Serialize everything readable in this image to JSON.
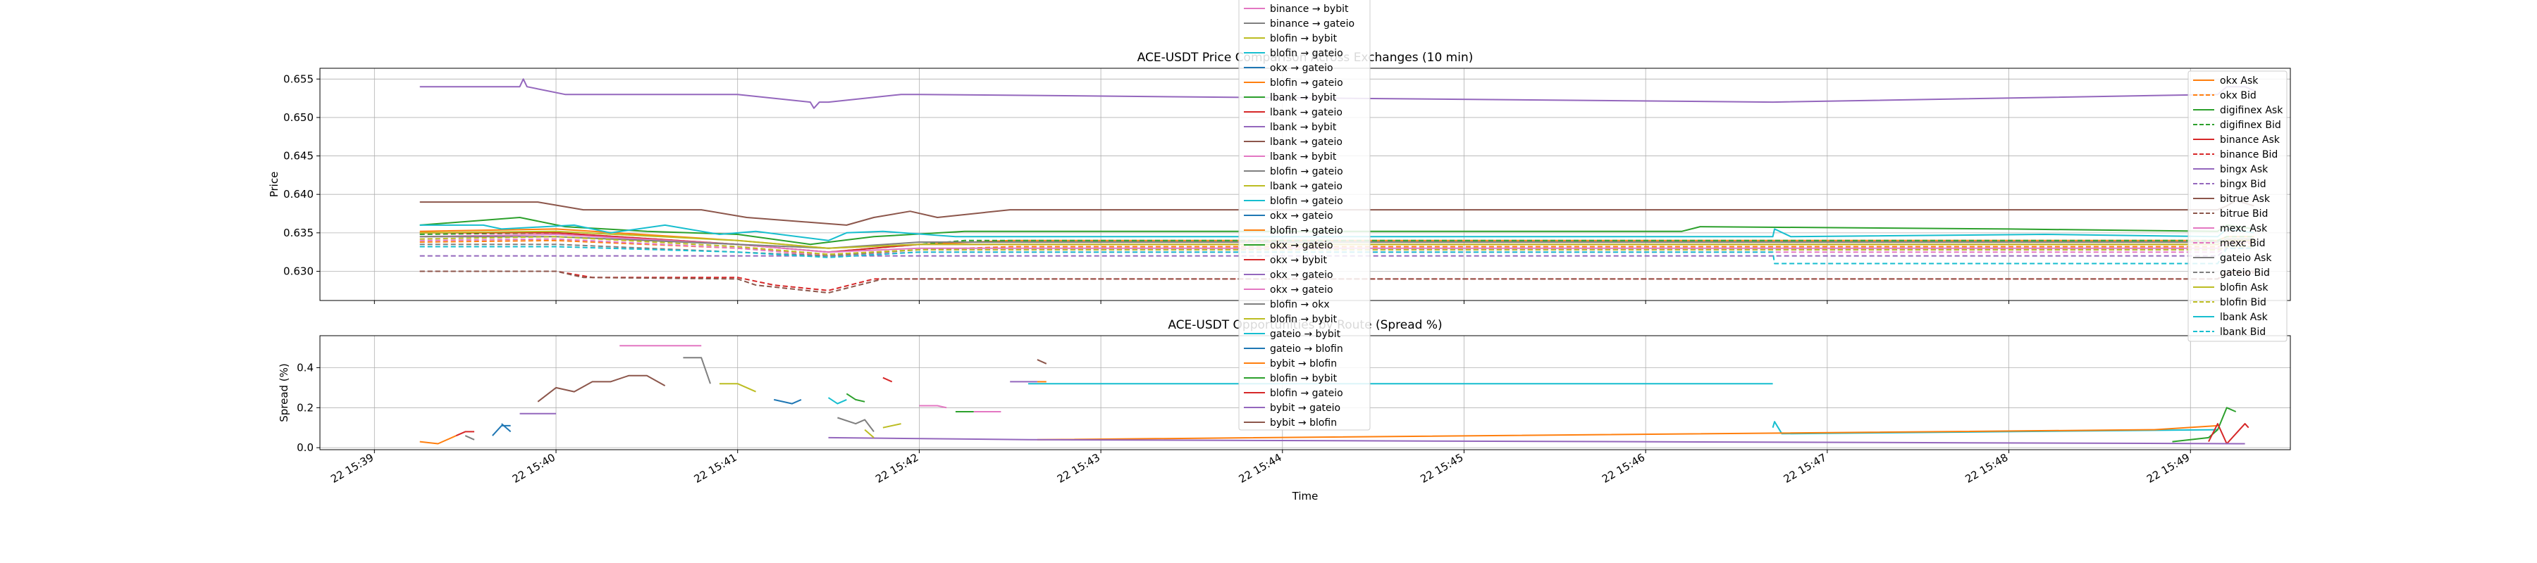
{
  "time_ticks": [
    "22 15:39",
    "22 15:40",
    "22 15:41",
    "22 15:42",
    "22 15:43",
    "22 15:44",
    "22 15:45",
    "22 15:46",
    "22 15:47",
    "22 15:48",
    "22 15:49"
  ],
  "colors": {
    "okx": "#ff7f0e",
    "digifinex": "#2ca02c",
    "binance": "#d62728",
    "bingx": "#9467bd",
    "bitrue": "#8c564b",
    "mexc": "#e377c2",
    "gateio": "#7f7f7f",
    "blofin": "#bcbd22",
    "lbank": "#17becf",
    "blue": "#1f77b4"
  },
  "chart_data": [
    {
      "type": "line",
      "title": "ACE-USDT Price Comparison Across Exchanges (10 min)",
      "xlabel": "",
      "ylabel": "Price",
      "xlim": [
        "15:38.7",
        "15:49.55"
      ],
      "ylim": [
        0.6262,
        0.6564
      ],
      "yticks": [
        "0.630",
        "0.635",
        "0.640",
        "0.645",
        "0.650",
        "0.655"
      ],
      "grid": true,
      "legend_position": "right",
      "series": [
        {
          "name": "okx Ask",
          "color": "#ff7f0e",
          "dash": false,
          "x": [
            39.25,
            40.0,
            41.0,
            41.5,
            42.0,
            42.5,
            49.15,
            49.2,
            49.35
          ],
          "y": [
            0.6352,
            0.6355,
            0.634,
            0.633,
            0.6335,
            0.634,
            0.634,
            0.6345,
            0.6345
          ]
        },
        {
          "name": "okx Bid",
          "color": "#ff7f0e",
          "dash": true,
          "x": [
            39.25,
            40.0,
            41.0,
            41.5,
            42.0,
            42.5,
            49.15,
            49.2,
            49.35
          ],
          "y": [
            0.6338,
            0.634,
            0.633,
            0.6322,
            0.6328,
            0.6332,
            0.6332,
            0.6336,
            0.6336
          ]
        },
        {
          "name": "digifinex Ask",
          "color": "#2ca02c",
          "dash": false,
          "x": [
            39.25,
            39.8,
            40.05,
            40.5,
            41.0,
            41.4,
            41.75,
            42.25,
            46.2,
            46.3,
            48.0,
            49.15,
            49.2,
            49.35
          ],
          "y": [
            0.636,
            0.637,
            0.6358,
            0.6352,
            0.6348,
            0.6335,
            0.6345,
            0.6352,
            0.6352,
            0.6358,
            0.6355,
            0.6352,
            0.636,
            0.6355
          ]
        },
        {
          "name": "digifinex Bid",
          "color": "#2ca02c",
          "dash": true,
          "x": [
            39.25,
            40.0,
            41.0,
            41.5,
            42.25,
            49.15,
            49.2,
            49.35
          ],
          "y": [
            0.6348,
            0.635,
            0.6335,
            0.6325,
            0.634,
            0.634,
            0.6345,
            0.6345
          ]
        },
        {
          "name": "binance Ask",
          "color": "#d62728",
          "dash": false,
          "x": [
            39.25,
            40.0,
            41.0,
            41.5,
            42.0,
            49.15,
            49.2,
            49.35
          ],
          "y": [
            0.635,
            0.635,
            0.6335,
            0.6325,
            0.6335,
            0.6335,
            0.634,
            0.634
          ]
        },
        {
          "name": "binance Bid",
          "color": "#d62728",
          "dash": true,
          "x": [
            39.25,
            40.0,
            40.2,
            41.0,
            41.2,
            41.5,
            41.75,
            49.15,
            49.2,
            49.35
          ],
          "y": [
            0.63,
            0.63,
            0.6292,
            0.6292,
            0.6282,
            0.6275,
            0.629,
            0.629,
            0.6298,
            0.6298
          ]
        },
        {
          "name": "bingx Ask",
          "color": "#9467bd",
          "dash": false,
          "x": [
            39.25,
            39.8,
            39.82,
            39.84,
            40.05,
            41.0,
            41.4,
            41.42,
            41.45,
            41.5,
            41.9,
            42.0,
            46.7,
            49.15,
            49.2,
            49.3,
            49.35
          ],
          "y": [
            0.654,
            0.654,
            0.655,
            0.654,
            0.653,
            0.653,
            0.652,
            0.6512,
            0.652,
            0.652,
            0.653,
            0.653,
            0.652,
            0.653,
            0.654,
            0.654,
            0.6535
          ]
        },
        {
          "name": "bingx Bid",
          "color": "#9467bd",
          "dash": true,
          "x": [
            39.25,
            40.0,
            41.0,
            41.5,
            42.0,
            49.15,
            49.2,
            49.35
          ],
          "y": [
            0.632,
            0.632,
            0.632,
            0.632,
            0.632,
            0.632,
            0.633,
            0.633
          ]
        },
        {
          "name": "bitrue Ask",
          "color": "#8c564b",
          "dash": false,
          "x": [
            39.25,
            39.9,
            40.15,
            40.8,
            41.05,
            41.6,
            41.75,
            41.95,
            42.1,
            42.5,
            49.15,
            49.2,
            49.25,
            49.35
          ],
          "y": [
            0.639,
            0.639,
            0.638,
            0.638,
            0.637,
            0.636,
            0.637,
            0.6378,
            0.637,
            0.638,
            0.638,
            0.6385,
            0.6392,
            0.6385
          ]
        },
        {
          "name": "bitrue Bid",
          "color": "#8c564b",
          "dash": true,
          "x": [
            39.25,
            40.0,
            40.15,
            41.0,
            41.1,
            41.5,
            41.8,
            49.15,
            49.2,
            49.35
          ],
          "y": [
            0.63,
            0.63,
            0.6292,
            0.629,
            0.6282,
            0.6272,
            0.629,
            0.629,
            0.63,
            0.63
          ]
        },
        {
          "name": "mexc Ask",
          "color": "#e377c2",
          "dash": false,
          "x": [
            39.25,
            40.0,
            41.0,
            41.5,
            42.0,
            49.15,
            49.2,
            49.35
          ],
          "y": [
            0.6345,
            0.6348,
            0.6335,
            0.6325,
            0.633,
            0.633,
            0.6338,
            0.6338
          ]
        },
        {
          "name": "mexc Bid",
          "color": "#e377c2",
          "dash": true,
          "x": [
            39.25,
            40.0,
            41.0,
            41.5,
            42.0,
            49.15,
            49.2,
            49.35
          ],
          "y": [
            0.634,
            0.6342,
            0.633,
            0.632,
            0.6325,
            0.6325,
            0.6332,
            0.6332
          ]
        },
        {
          "name": "gateio Ask",
          "color": "#7f7f7f",
          "dash": false,
          "x": [
            39.25,
            40.0,
            41.0,
            41.5,
            42.0,
            49.15,
            49.2,
            49.35
          ],
          "y": [
            0.6345,
            0.6345,
            0.6335,
            0.633,
            0.6338,
            0.6338,
            0.6342,
            0.6342
          ]
        },
        {
          "name": "gateio Bid",
          "color": "#7f7f7f",
          "dash": true,
          "x": [
            39.25,
            40.0,
            41.0,
            41.5,
            42.0,
            49.15,
            49.2,
            49.35
          ],
          "y": [
            0.6335,
            0.6335,
            0.6325,
            0.632,
            0.6328,
            0.6328,
            0.6332,
            0.6332
          ]
        },
        {
          "name": "blofin Ask",
          "color": "#bcbd22",
          "dash": false,
          "x": [
            39.25,
            40.0,
            41.0,
            41.5,
            42.0,
            49.15,
            49.2,
            49.35
          ],
          "y": [
            0.635,
            0.6352,
            0.634,
            0.633,
            0.6335,
            0.6335,
            0.634,
            0.634
          ]
        },
        {
          "name": "blofin Bid",
          "color": "#bcbd22",
          "dash": true,
          "x": [
            39.25,
            40.0,
            41.0,
            41.5,
            42.0,
            49.15,
            49.2,
            49.35
          ],
          "y": [
            0.6342,
            0.6345,
            0.6332,
            0.6322,
            0.6328,
            0.6328,
            0.6332,
            0.6332
          ]
        },
        {
          "name": "lbank Ask",
          "color": "#17becf",
          "dash": false,
          "x": [
            39.25,
            39.6,
            39.7,
            40.1,
            40.3,
            40.6,
            40.9,
            41.1,
            41.5,
            41.6,
            41.8,
            42.2,
            46.7,
            46.71,
            46.8,
            48.2,
            49.15,
            49.2,
            49.35
          ],
          "y": [
            0.636,
            0.636,
            0.6355,
            0.636,
            0.635,
            0.636,
            0.6348,
            0.6352,
            0.634,
            0.635,
            0.6352,
            0.6345,
            0.6345,
            0.6355,
            0.6345,
            0.6348,
            0.6345,
            0.6355,
            0.635
          ]
        },
        {
          "name": "lbank Bid",
          "color": "#17becf",
          "dash": true,
          "x": [
            39.25,
            40.0,
            41.0,
            41.5,
            42.0,
            46.7,
            46.71,
            49.15,
            49.2,
            49.35
          ],
          "y": [
            0.6332,
            0.6332,
            0.6325,
            0.6318,
            0.6325,
            0.6325,
            0.631,
            0.631,
            0.633,
            0.633
          ]
        }
      ]
    },
    {
      "type": "line",
      "title": "ACE-USDT Opportunities by Route (Spread %)",
      "xlabel": "Time",
      "ylabel": "Spread (%)",
      "xlim": [
        "15:38.7",
        "15:49.55"
      ],
      "ylim": [
        -0.01,
        0.56
      ],
      "yticks": [
        "0.0",
        "0.2",
        "0.4"
      ],
      "grid": true,
      "legend_position": "top-center",
      "series": [
        {
          "name": "binance → bybit",
          "color": "#e377c2",
          "x": [
            40.35,
            40.8
          ],
          "y": [
            0.51,
            0.51
          ]
        },
        {
          "name": "binance → gateio",
          "color": "#7f7f7f",
          "x": [
            40.7,
            40.8,
            40.85
          ],
          "y": [
            0.45,
            0.45,
            0.32
          ]
        },
        {
          "name": "blofin → bybit",
          "color": "#bcbd22",
          "x": [
            40.9,
            41.0,
            41.1
          ],
          "y": [
            0.32,
            0.32,
            0.28
          ]
        },
        {
          "name": "blofin → gateio",
          "color": "#17becf",
          "x": [
            46.7,
            46.71,
            46.75,
            49.15
          ],
          "y": [
            0.1,
            0.13,
            0.07,
            0.09
          ]
        },
        {
          "name": "okx → gateio",
          "color": "#1f77b4",
          "x": [
            41.2,
            41.3,
            41.35
          ],
          "y": [
            0.24,
            0.22,
            0.24
          ]
        },
        {
          "name": "blofin → gateio",
          "color": "#ff7f0e",
          "x": [
            42.65,
            48.8,
            49.15
          ],
          "y": [
            0.04,
            0.09,
            0.11
          ]
        },
        {
          "name": "lbank → bybit",
          "color": "#2ca02c",
          "x": [
            48.9,
            49.1,
            49.15,
            49.2,
            49.25
          ],
          "y": [
            0.03,
            0.05,
            0.09,
            0.2,
            0.18
          ]
        },
        {
          "name": "lbank → gateio",
          "color": "#d62728",
          "x": [
            49.1,
            49.15,
            49.2,
            49.3,
            49.32
          ],
          "y": [
            0.03,
            0.12,
            0.02,
            0.12,
            0.1
          ]
        },
        {
          "name": "lbank → bybit",
          "color": "#9467bd",
          "x": [
            41.5,
            42.6,
            49.3
          ],
          "y": [
            0.05,
            0.04,
            0.02
          ]
        },
        {
          "name": "lbank → gateio",
          "color": "#8c564b",
          "x": [
            39.9,
            40.0,
            40.1,
            40.2,
            40.3,
            40.4,
            40.5,
            40.6
          ],
          "y": [
            0.23,
            0.3,
            0.28,
            0.33,
            0.33,
            0.36,
            0.36,
            0.31
          ]
        },
        {
          "name": "lbank → bybit",
          "color": "#e377c2",
          "x": [
            42.0,
            42.1,
            42.15
          ],
          "y": [
            0.21,
            0.21,
            0.2
          ]
        },
        {
          "name": "blofin → gateio",
          "color": "#7f7f7f",
          "x": [
            41.55,
            41.65,
            41.7,
            41.75
          ],
          "y": [
            0.15,
            0.12,
            0.14,
            0.08
          ]
        },
        {
          "name": "lbank → gateio",
          "color": "#bcbd22",
          "x": [
            41.8,
            41.9
          ],
          "y": [
            0.1,
            0.12
          ]
        },
        {
          "name": "blofin → gateio",
          "color": "#17becf",
          "x": [
            41.5,
            41.55,
            41.6
          ],
          "y": [
            0.25,
            0.22,
            0.24
          ]
        },
        {
          "name": "okx → gateio",
          "color": "#1f77b4",
          "x": [
            39.65,
            39.7,
            39.75
          ],
          "y": [
            0.06,
            0.11,
            0.11
          ]
        },
        {
          "name": "blofin → gateio",
          "color": "#ff7f0e",
          "x": [
            39.25,
            39.35,
            39.45
          ],
          "y": [
            0.03,
            0.02,
            0.06
          ]
        },
        {
          "name": "okx → gateio",
          "color": "#2ca02c",
          "x": [
            41.6,
            41.65,
            41.7
          ],
          "y": [
            0.27,
            0.24,
            0.23
          ]
        },
        {
          "name": "okx → bybit",
          "color": "#d62728",
          "x": [
            39.45,
            39.5,
            39.55
          ],
          "y": [
            0.06,
            0.08,
            0.08
          ]
        },
        {
          "name": "okx → gateio",
          "color": "#9467bd",
          "x": [
            39.8,
            40.0
          ],
          "y": [
            0.17,
            0.17
          ]
        },
        {
          "name": "okx → gateio",
          "color": "#e377c2",
          "x": [
            42.3,
            42.45
          ],
          "y": [
            0.18,
            0.18
          ]
        },
        {
          "name": "blofin → okx",
          "color": "#7f7f7f",
          "x": [
            39.5,
            39.55
          ],
          "y": [
            0.06,
            0.04
          ]
        },
        {
          "name": "blofin → bybit",
          "color": "#bcbd22",
          "x": [
            41.7,
            41.75
          ],
          "y": [
            0.09,
            0.05
          ]
        },
        {
          "name": "gateio → bybit",
          "color": "#17becf",
          "x": [
            42.6,
            46.7
          ],
          "y": [
            0.32,
            0.32
          ]
        },
        {
          "name": "gateio → blofin",
          "color": "#1f77b4",
          "x": [
            39.7,
            39.75
          ],
          "y": [
            0.12,
            0.08
          ]
        },
        {
          "name": "bybit → blofin",
          "color": "#ff7f0e",
          "x": [
            42.65,
            42.7
          ],
          "y": [
            0.33,
            0.33
          ]
        },
        {
          "name": "blofin → bybit",
          "color": "#2ca02c",
          "x": [
            42.2,
            42.3
          ],
          "y": [
            0.18,
            0.18
          ]
        },
        {
          "name": "blofin → gateio",
          "color": "#d62728",
          "x": [
            41.8,
            41.85
          ],
          "y": [
            0.35,
            0.33
          ]
        },
        {
          "name": "bybit → gateio",
          "color": "#9467bd",
          "x": [
            42.5,
            42.65
          ],
          "y": [
            0.33,
            0.33
          ]
        },
        {
          "name": "bybit → blofin",
          "color": "#8c564b",
          "x": [
            42.65,
            42.7
          ],
          "y": [
            0.44,
            0.42
          ]
        }
      ]
    }
  ]
}
